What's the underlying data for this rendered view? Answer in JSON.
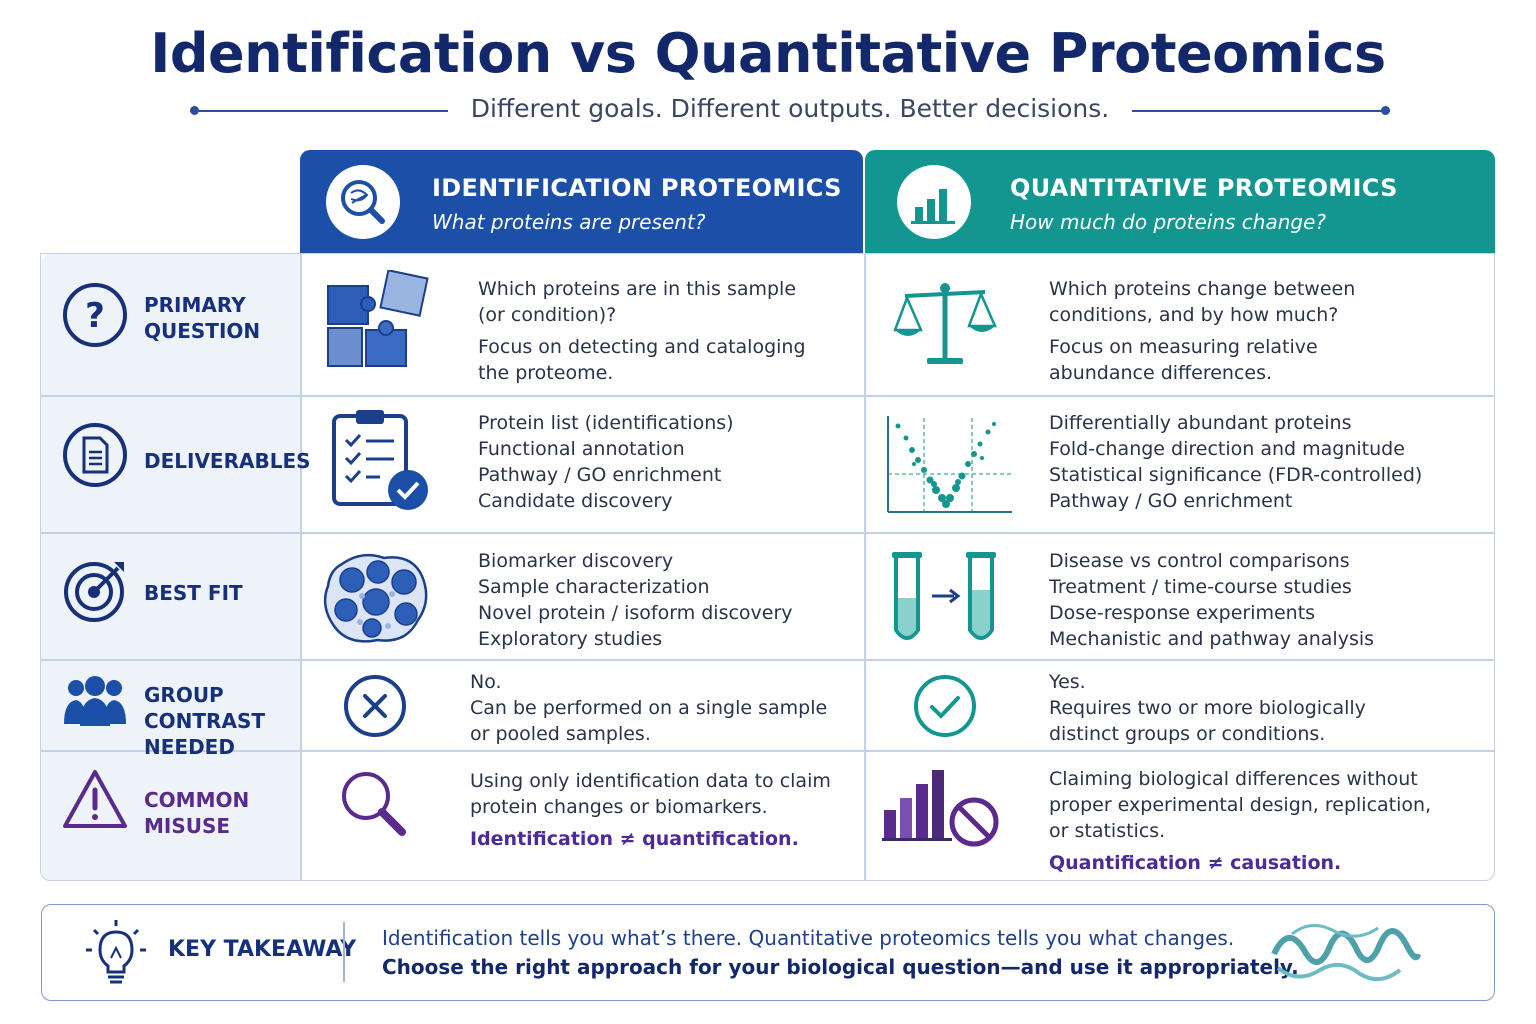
{
  "title": "Identification vs Quantitative Proteomics",
  "subtitle": "Different goals. Different outputs. Better decisions.",
  "columns": {
    "identification": {
      "title": "IDENTIFICATION PROTEOMICS",
      "question": "What proteins are present?",
      "icon": "magnifier-protein-icon",
      "color": "#1b4fa8"
    },
    "quantitative": {
      "title": "QUANTITATIVE PROTEOMICS",
      "question": "How much do proteins change?",
      "icon": "bar-chart-icon",
      "color": "#13968f"
    }
  },
  "rows": [
    {
      "label": [
        "PRIMARY",
        "QUESTION"
      ],
      "label_icon": "question-circle-icon",
      "identification": {
        "icon": "puzzle-icon",
        "lines": [
          "Which proteins are in this sample",
          "(or condition)?"
        ],
        "lines2": [
          "Focus on detecting and cataloging",
          "the proteome."
        ]
      },
      "quantitative": {
        "icon": "balance-scale-icon",
        "lines": [
          "Which proteins change between",
          "conditions, and by how much?"
        ],
        "lines2": [
          "Focus on measuring relative",
          "abundance differences."
        ]
      }
    },
    {
      "label": [
        "DELIVERABLES"
      ],
      "label_icon": "document-circle-icon",
      "identification": {
        "icon": "clipboard-check-icon",
        "lines": [
          "Protein list (identifications)",
          "Functional annotation",
          "Pathway / GO enrichment",
          "Candidate discovery"
        ]
      },
      "quantitative": {
        "icon": "volcano-plot-icon",
        "lines": [
          "Differentially abundant proteins",
          "Fold-change direction and magnitude",
          "Statistical significance (FDR-controlled)",
          "Pathway / GO enrichment"
        ]
      }
    },
    {
      "label": [
        "BEST FIT"
      ],
      "label_icon": "target-icon",
      "identification": {
        "icon": "cell-cluster-icon",
        "lines": [
          "Biomarker discovery",
          "Sample characterization",
          "Novel protein / isoform discovery",
          "Exploratory studies"
        ]
      },
      "quantitative": {
        "icon": "test-tubes-icon",
        "lines": [
          "Disease vs control comparisons",
          "Treatment / time-course studies",
          "Dose-response experiments",
          "Mechanistic and pathway analysis"
        ]
      }
    },
    {
      "label": [
        "GROUP CONTRAST",
        "NEEDED"
      ],
      "label_icon": "people-group-icon",
      "identification": {
        "icon": "x-circle-icon",
        "lines": [
          "No.",
          "Can be performed on a single sample",
          "or pooled samples."
        ]
      },
      "quantitative": {
        "icon": "check-circle-icon",
        "lines": [
          "Yes.",
          "Requires two or more biologically",
          "distinct groups or conditions."
        ]
      }
    },
    {
      "label": [
        "COMMON MISUSE"
      ],
      "label_icon": "warning-triangle-icon",
      "identification": {
        "icon": "magnifier-icon",
        "lines": [
          "Using only identification data to claim",
          "protein changes or biomarkers."
        ],
        "emphasis": "Identification ≠ quantification."
      },
      "quantitative": {
        "icon": "bars-prohibited-icon",
        "lines": [
          "Claiming biological differences without",
          "proper experimental design, replication,",
          "or statistics."
        ],
        "emphasis": "Quantification ≠ causation."
      }
    }
  ],
  "takeaway": {
    "label": "KEY TAKEAWAY",
    "icon": "lightbulb-icon",
    "line1": "Identification tells you what’s there. Quantitative proteomics tells you what changes.",
    "line2": "Choose the right approach for your biological question—and use it appropriately.",
    "decor_icon": "protein-ribbon-icon"
  }
}
